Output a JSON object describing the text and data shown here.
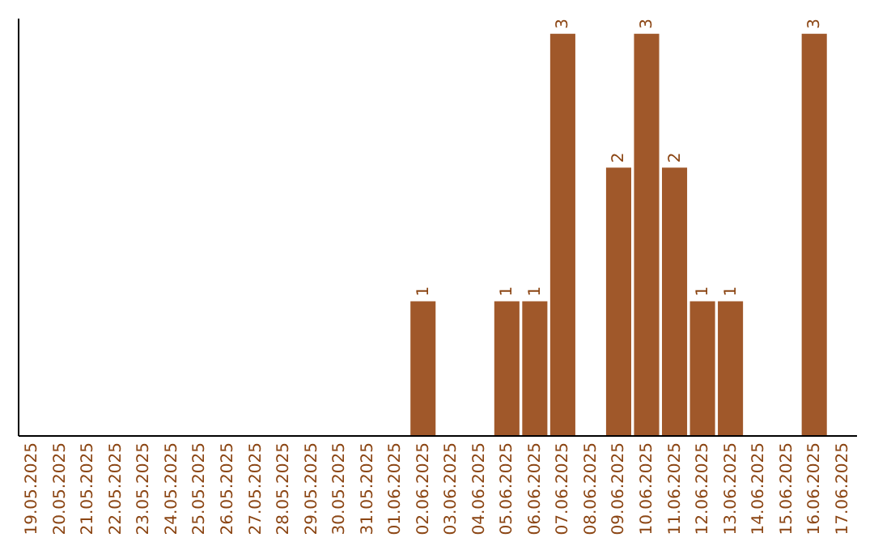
{
  "chart_data": {
    "type": "bar",
    "categories": [
      "19.05.2025",
      "20.05.2025",
      "21.05.2025",
      "22.05.2025",
      "23.05.2025",
      "24.05.2025",
      "25.05.2025",
      "26.05.2025",
      "27.05.2025",
      "28.05.2025",
      "29.05.2025",
      "30.05.2025",
      "31.05.2025",
      "01.06.2025",
      "02.06.2025",
      "03.06.2025",
      "04.06.2025",
      "05.06.2025",
      "06.06.2025",
      "07.06.2025",
      "08.06.2025",
      "09.06.2025",
      "10.06.2025",
      "11.06.2025",
      "12.06.2025",
      "13.06.2025",
      "14.06.2025",
      "15.06.2025",
      "16.06.2025",
      "17.06.2025"
    ],
    "values": [
      null,
      null,
      null,
      null,
      null,
      null,
      null,
      null,
      null,
      null,
      null,
      null,
      null,
      null,
      1,
      null,
      null,
      1,
      1,
      3,
      null,
      2,
      3,
      2,
      1,
      1,
      null,
      null,
      3,
      null
    ],
    "data_labels": true,
    "color": "#a0582a",
    "grid": false
  }
}
